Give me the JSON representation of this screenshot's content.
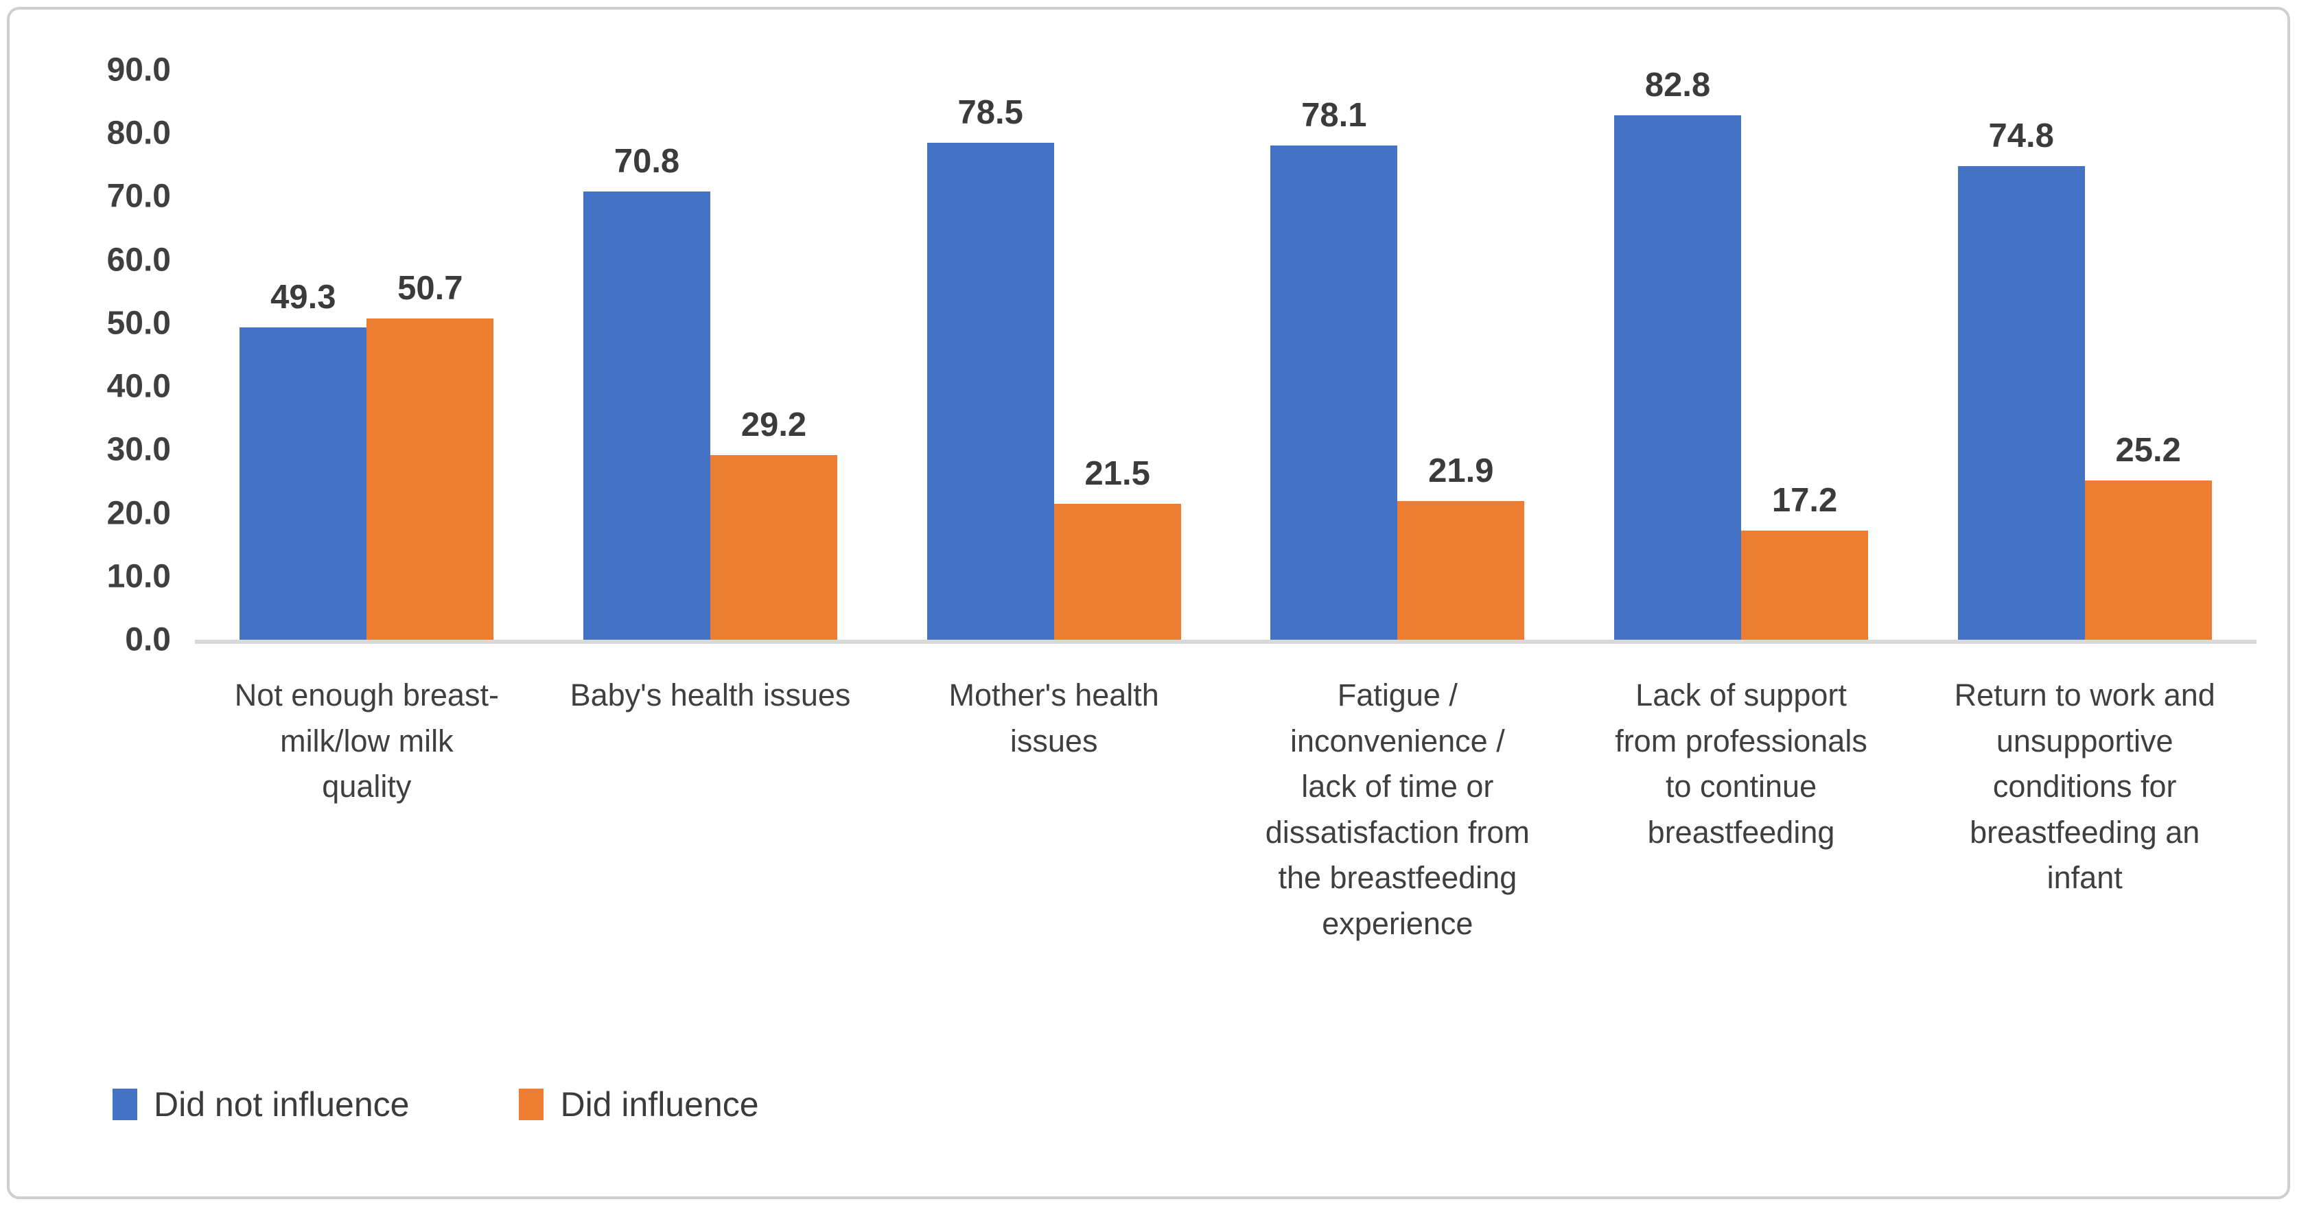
{
  "chart_data": {
    "type": "bar",
    "title": "",
    "xlabel": "",
    "ylabel": "",
    "categories": [
      "Not enough breast-\nmilk/low milk\nquality",
      "Baby's health issues",
      "Mother's health\nissues",
      "Fatigue /\ninconvenience /\nlack of time or\ndissatisfaction from\nthe breastfeeding\nexperience",
      "Lack of support\nfrom professionals\nto continue\nbreastfeeding",
      "Return to work and\nunsupportive\nconditions for\nbreastfeeding an\ninfant"
    ],
    "series": [
      {
        "name": "Did not influence",
        "color": "#4472C4",
        "values": [
          49.3,
          70.8,
          78.5,
          78.1,
          82.8,
          74.8
        ]
      },
      {
        "name": "Did influence",
        "color": "#ED7D31",
        "values": [
          50.7,
          29.2,
          21.5,
          21.9,
          17.2,
          25.2
        ]
      }
    ],
    "ylim": [
      0,
      90
    ],
    "ytick_step": 10,
    "ytick_labels": [
      "90.0",
      "80.0",
      "70.0",
      "60.0",
      "50.0",
      "40.0",
      "30.0",
      "20.0",
      "10.0",
      "0.0"
    ],
    "grid": false,
    "value_labels": true,
    "legend_position": "bottom-left"
  },
  "colors": {
    "text": "#3f3f3f",
    "axis_line": "#d9d9d9",
    "frame_border": "#cfcfcf",
    "background": "#ffffff"
  }
}
